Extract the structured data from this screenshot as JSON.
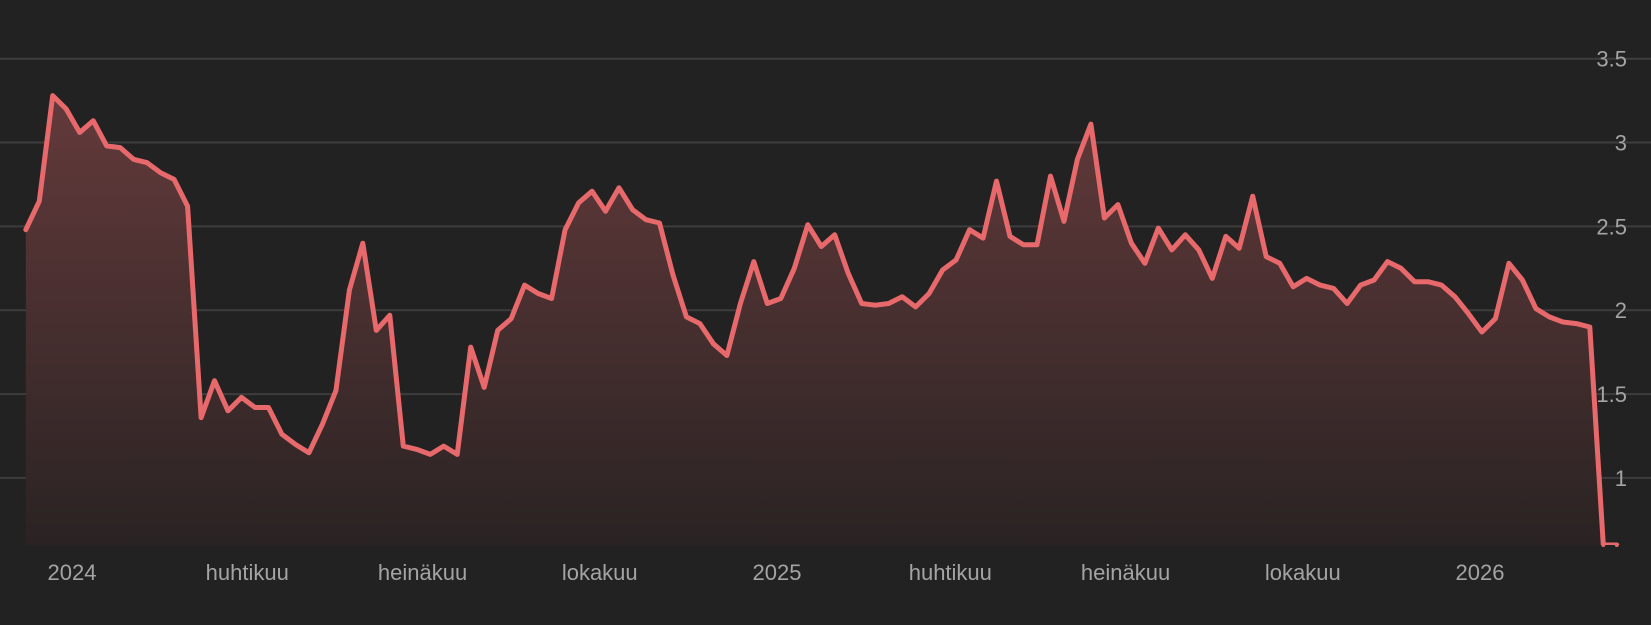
{
  "chart_data": {
    "type": "area",
    "title": "",
    "xlabel": "",
    "ylabel": "",
    "ylim": [
      0.6,
      3.85
    ],
    "grid": true,
    "y_ticks": [
      {
        "value": 3.5,
        "label": "3.5"
      },
      {
        "value": 3,
        "label": "3"
      },
      {
        "value": 2.5,
        "label": "2.5"
      },
      {
        "value": 2,
        "label": "2"
      },
      {
        "value": 1.5,
        "label": "1.5"
      },
      {
        "value": 1,
        "label": "1"
      }
    ],
    "x_ticks": [
      {
        "value": "2024-01-01",
        "label": "2024"
      },
      {
        "value": "2024-04-01",
        "label": "huhtikuu"
      },
      {
        "value": "2024-07-01",
        "label": "heinäkuu"
      },
      {
        "value": "2024-10-01",
        "label": "lokakuu"
      },
      {
        "value": "2025-01-01",
        "label": "2025"
      },
      {
        "value": "2025-04-01",
        "label": "huhtikuu"
      },
      {
        "value": "2025-07-01",
        "label": "heinäkuu"
      },
      {
        "value": "2025-10-01",
        "label": "lokakuu"
      },
      {
        "value": "2026-01-01",
        "label": "2026"
      }
    ],
    "colors": {
      "line": "#e8696b",
      "fill_top": "#643a3b",
      "fill_bottom": "#2a2323",
      "grid": "#3d3d3d",
      "text": "#a4a4a4",
      "background": "#222222"
    },
    "series": [
      {
        "x": [
          "2023-12-08",
          "2023-12-15",
          "2023-12-22",
          "2023-12-29",
          "2024-01-05",
          "2024-01-12",
          "2024-01-19",
          "2024-01-26",
          "2024-02-02",
          "2024-02-09",
          "2024-02-16",
          "2024-02-23",
          "2024-03-01",
          "2024-03-08",
          "2024-03-15",
          "2024-03-22",
          "2024-03-29",
          "2024-04-05",
          "2024-04-12",
          "2024-04-19",
          "2024-04-26",
          "2024-05-03",
          "2024-05-10",
          "2024-05-17",
          "2024-05-24",
          "2024-05-31",
          "2024-06-07",
          "2024-06-14",
          "2024-06-21",
          "2024-06-28",
          "2024-07-05",
          "2024-07-12",
          "2024-07-19",
          "2024-07-26",
          "2024-08-02",
          "2024-08-09",
          "2024-08-16",
          "2024-08-23",
          "2024-08-30",
          "2024-09-06",
          "2024-09-13",
          "2024-09-20",
          "2024-09-27",
          "2024-10-04",
          "2024-10-11",
          "2024-10-18",
          "2024-10-25",
          "2024-11-01",
          "2024-11-08",
          "2024-11-15",
          "2024-11-22",
          "2024-11-29",
          "2024-12-06",
          "2024-12-13",
          "2024-12-20",
          "2024-12-27",
          "2025-01-03",
          "2025-01-10",
          "2025-01-17",
          "2025-01-24",
          "2025-01-31",
          "2025-02-07",
          "2025-02-14",
          "2025-02-21",
          "2025-02-28",
          "2025-03-07",
          "2025-03-14",
          "2025-03-21",
          "2025-03-28",
          "2025-04-04",
          "2025-04-11",
          "2025-04-18",
          "2025-04-25",
          "2025-05-02",
          "2025-05-09",
          "2025-05-16",
          "2025-05-23",
          "2025-05-30",
          "2025-06-06",
          "2025-06-13",
          "2025-06-20",
          "2025-06-27",
          "2025-07-04",
          "2025-07-11",
          "2025-07-18",
          "2025-07-25",
          "2025-08-01",
          "2025-08-08",
          "2025-08-15",
          "2025-08-22",
          "2025-08-29",
          "2025-09-05",
          "2025-09-12",
          "2025-09-19",
          "2025-09-26",
          "2025-10-03",
          "2025-10-10",
          "2025-10-17",
          "2025-10-24",
          "2025-10-31",
          "2025-11-07",
          "2025-11-14",
          "2025-11-21",
          "2025-11-28",
          "2025-12-05",
          "2025-12-12",
          "2025-12-19",
          "2025-12-26",
          "2026-01-02",
          "2026-01-09",
          "2026-01-16",
          "2026-01-23",
          "2026-01-30",
          "2026-02-06",
          "2026-02-13",
          "2026-02-20",
          "2026-02-27",
          "2026-03-06",
          "2026-03-13"
        ],
        "values": [
          2.48,
          2.65,
          3.28,
          3.2,
          3.06,
          3.13,
          2.98,
          2.97,
          2.9,
          2.88,
          2.82,
          2.78,
          2.62,
          1.36,
          1.58,
          1.4,
          1.48,
          1.42,
          1.42,
          1.26,
          1.2,
          1.15,
          1.32,
          1.52,
          2.12,
          2.4,
          1.88,
          1.97,
          1.19,
          1.17,
          1.14,
          1.19,
          1.14,
          1.78,
          1.54,
          1.88,
          1.95,
          2.15,
          2.1,
          2.07,
          2.48,
          2.64,
          2.71,
          2.59,
          2.73,
          2.6,
          2.54,
          2.52,
          2.21,
          1.96,
          1.92,
          1.8,
          1.73,
          2.04,
          2.29,
          2.04,
          2.07,
          2.25,
          2.51,
          2.38,
          2.45,
          2.22,
          2.04,
          2.03,
          2.04,
          2.08,
          2.02,
          2.1,
          2.24,
          2.3,
          2.48,
          2.43,
          2.77,
          2.44,
          2.39,
          2.39,
          2.8,
          2.53,
          2.9,
          3.11,
          2.55,
          2.63,
          2.4,
          2.28,
          2.49,
          2.36,
          2.45,
          2.36,
          2.19,
          2.44,
          2.37,
          2.68,
          2.32,
          2.28,
          2.14,
          2.19,
          2.15,
          2.13,
          2.04,
          2.15,
          2.18,
          2.29,
          2.25,
          2.17,
          2.17,
          2.15,
          2.08,
          1.98,
          1.87,
          1.95,
          2.28,
          2.18,
          2.01,
          1.96,
          1.93,
          1.92,
          1.9,
          0.6,
          0.6
        ]
      }
    ]
  }
}
